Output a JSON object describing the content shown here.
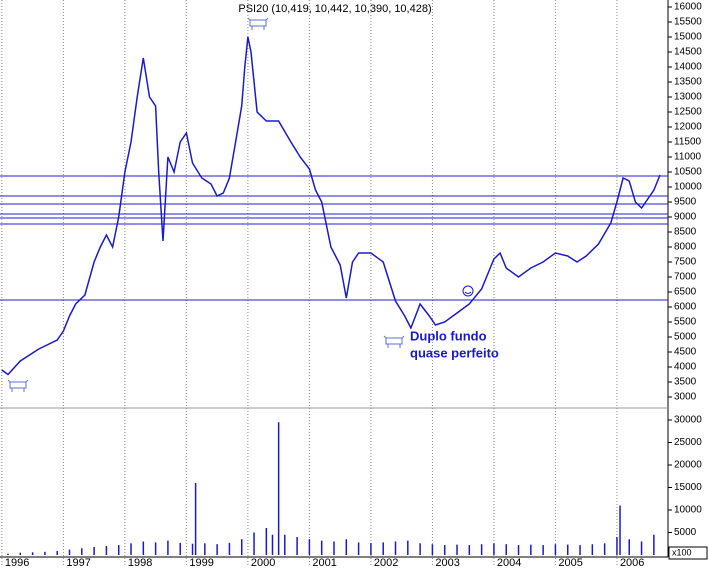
{
  "chart_data": [
    {
      "type": "line",
      "title": "PSI20 (10,419, 10,442, 10,390, 10,428)",
      "annotation": [
        "Duplo fundo",
        "quase perfeito"
      ],
      "color": "#1a1acc",
      "hline_color": "#2020c0",
      "x": [
        1996.0,
        1996.1,
        1996.3,
        1996.6,
        1996.9,
        1997.0,
        1997.1,
        1997.2,
        1997.35,
        1997.5,
        1997.6,
        1997.7,
        1997.8,
        1997.9,
        1998.0,
        1998.1,
        1998.2,
        1998.3,
        1998.4,
        1998.5,
        1998.55,
        1998.62,
        1998.7,
        1998.8,
        1998.9,
        1999.0,
        1999.1,
        1999.25,
        1999.4,
        1999.5,
        1999.6,
        1999.7,
        1999.8,
        1999.9,
        1999.95,
        2000.0,
        2000.05,
        2000.15,
        2000.3,
        2000.5,
        2000.7,
        2000.85,
        2001.0,
        2001.1,
        2001.2,
        2001.35,
        2001.5,
        2001.6,
        2001.7,
        2001.8,
        2002.0,
        2002.2,
        2002.4,
        2002.55,
        2002.65,
        2002.8,
        2002.95,
        2003.05,
        2003.2,
        2003.4,
        2003.6,
        2003.8,
        2004.0,
        2004.1,
        2004.2,
        2004.4,
        2004.6,
        2004.8,
        2005.0,
        2005.2,
        2005.35,
        2005.5,
        2005.7,
        2005.9,
        2006.0,
        2006.1,
        2006.2,
        2006.3,
        2006.4,
        2006.6,
        2006.7
      ],
      "values": [
        3900,
        3750,
        4200,
        4600,
        4900,
        5200,
        5700,
        6100,
        6400,
        7500,
        8000,
        8400,
        8000,
        9000,
        10500,
        11500,
        13000,
        14300,
        13000,
        12700,
        10500,
        8200,
        11000,
        10500,
        11500,
        11800,
        10800,
        10300,
        10100,
        9700,
        9800,
        10300,
        11500,
        12700,
        14000,
        15000,
        14500,
        12500,
        12200,
        12200,
        11500,
        11000,
        10600,
        9900,
        9500,
        8000,
        7400,
        6300,
        7500,
        7800,
        7800,
        7500,
        6200,
        5700,
        5300,
        6100,
        5700,
        5400,
        5500,
        5800,
        6100,
        6600,
        7600,
        7800,
        7300,
        7000,
        7300,
        7500,
        7800,
        7700,
        7500,
        7700,
        8100,
        8800,
        9500,
        10300,
        10200,
        9500,
        9300,
        9900,
        10400
      ],
      "hlines": [
        10367,
        9700,
        9433,
        9100,
        8967,
        8767,
        6233
      ],
      "xlim": [
        1995.97,
        2006.83
      ],
      "xticks": [
        1996,
        1997,
        1998,
        1999,
        2000,
        2001,
        2002,
        2003,
        2004,
        2005,
        2006
      ],
      "ylim": [
        2700,
        16233
      ],
      "yticks": [
        3000,
        3500,
        4000,
        4500,
        5000,
        5500,
        6000,
        6500,
        7000,
        7500,
        8000,
        8500,
        9000,
        9500,
        10000,
        10500,
        11000,
        11500,
        12000,
        12500,
        13000,
        13500,
        14000,
        14500,
        15000,
        15500,
        16000
      ]
    },
    {
      "type": "bar",
      "unit_label": "x100",
      "color": "#1a1acc",
      "x": [
        1996.1,
        1996.3,
        1996.5,
        1996.7,
        1996.9,
        1997.1,
        1997.3,
        1997.5,
        1997.7,
        1997.9,
        1998.1,
        1998.3,
        1998.5,
        1998.7,
        1998.9,
        1999.1,
        1999.15,
        1999.3,
        1999.5,
        1999.7,
        1999.9,
        2000.1,
        2000.3,
        2000.4,
        2000.5,
        2000.6,
        2000.8,
        2001.0,
        2001.2,
        2001.4,
        2001.6,
        2001.8,
        2002.0,
        2002.2,
        2002.4,
        2002.6,
        2002.8,
        2003.0,
        2003.2,
        2003.4,
        2003.6,
        2003.8,
        2004.0,
        2004.2,
        2004.4,
        2004.6,
        2004.8,
        2005.0,
        2005.2,
        2005.4,
        2005.6,
        2005.8,
        2006.0,
        2006.05,
        2006.2,
        2006.4,
        2006.6
      ],
      "values": [
        300,
        500,
        600,
        700,
        900,
        1200,
        1500,
        1800,
        2000,
        2200,
        2600,
        3000,
        2800,
        3200,
        2700,
        2500,
        16000,
        2600,
        2400,
        2700,
        3500,
        5000,
        6000,
        4500,
        29500,
        4500,
        4000,
        3500,
        3200,
        3000,
        3500,
        2800,
        2600,
        2800,
        3000,
        3200,
        2600,
        2400,
        2200,
        2300,
        2200,
        2400,
        2600,
        2400,
        2200,
        2300,
        2200,
        2400,
        2300,
        2200,
        2400,
        2600,
        4000,
        11000,
        3500,
        3000,
        4500
      ],
      "ylim": [
        0,
        30000
      ],
      "yticks": [
        5000,
        10000,
        15000,
        20000,
        25000,
        30000
      ]
    }
  ]
}
